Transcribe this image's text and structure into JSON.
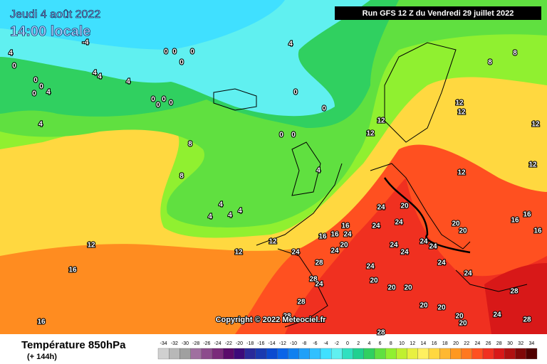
{
  "header": {
    "date": "Jeudi 4 août 2022",
    "time": "14:00 locale",
    "run": "Run GFS 12 Z du Vendredi 29 juillet 2022"
  },
  "copyright": "Copyright © 2022 Meteociel.fr",
  "legend": {
    "title": "Température 850hPa",
    "subtitle": "(+ 144h)",
    "scale": [
      -34,
      -32,
      -30,
      -28,
      -26,
      -24,
      -22,
      -20,
      -18,
      -16,
      -14,
      -12,
      -10,
      -8,
      -6,
      -4,
      -2,
      0,
      2,
      4,
      6,
      8,
      10,
      12,
      14,
      16,
      18,
      20,
      22,
      24,
      26,
      28,
      30,
      32,
      34
    ],
    "colors": [
      "#d0d0d0",
      "#b8b8b8",
      "#a0a0a0",
      "#a070a0",
      "#8c4c8c",
      "#7a2a7a",
      "#5a0a6a",
      "#3c0a7a",
      "#2a2a9a",
      "#1a3ab0",
      "#0a4ad0",
      "#0a64e8",
      "#1080f0",
      "#20a0f8",
      "#30c0ff",
      "#40e0ff",
      "#60f0f0",
      "#30e0c0",
      "#20d090",
      "#30d060",
      "#60e040",
      "#90f030",
      "#c0f030",
      "#e8f040",
      "#fff060",
      "#ffd840",
      "#ffb830",
      "#ff9820",
      "#ff7820",
      "#ff5020",
      "#f03020",
      "#d81818",
      "#b01010",
      "#800808",
      "#500000"
    ]
  },
  "map": {
    "contour_labels": [
      4,
      0,
      -4,
      0,
      0,
      0,
      0,
      4,
      4,
      4,
      0,
      0,
      0,
      4,
      0,
      0,
      0,
      0,
      4,
      0,
      0,
      4,
      8,
      0,
      0,
      4,
      8,
      4,
      4,
      4,
      4,
      12,
      12,
      12,
      12,
      8,
      8,
      12,
      12,
      12,
      12,
      16,
      16,
      12,
      12,
      24,
      16,
      16,
      16,
      24,
      24,
      20,
      24,
      24,
      20,
      24,
      24,
      28,
      28,
      24,
      24,
      24,
      24,
      24,
      20,
      20,
      16,
      16,
      16,
      24,
      24,
      20,
      20,
      20,
      20,
      20,
      20,
      20,
      28,
      28,
      28,
      28,
      24,
      28
    ]
  }
}
